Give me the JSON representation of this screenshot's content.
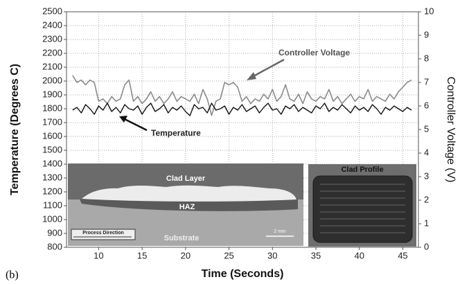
{
  "chart_data": {
    "type": "line",
    "x_label": "Time (Seconds)",
    "y_label": "Temperature (Degrees C)",
    "y2_label": "Controller Voltage (V)",
    "panel_label": "(b)",
    "annotations": [
      "Controller Voltage",
      "Temperature"
    ],
    "inset_labels": [
      "Clad Layer",
      "HAZ",
      "Substrate",
      "Process Direction",
      "2 mm",
      "Clad Profile"
    ],
    "grid": true,
    "xlim": [
      6.3,
      46.8
    ],
    "xticks": [
      10,
      15,
      20,
      25,
      30,
      35,
      40,
      45
    ],
    "ylim": [
      800,
      2500
    ],
    "yticks": [
      800,
      900,
      1000,
      1100,
      1200,
      1300,
      1400,
      1500,
      1600,
      1700,
      1800,
      1900,
      2000,
      2100,
      2200,
      2300,
      2400,
      2500
    ],
    "y2lim": [
      0,
      10
    ],
    "y2ticks": [
      0,
      1,
      2,
      3,
      4,
      5,
      6,
      7,
      8,
      9,
      10
    ],
    "x": [
      7,
      7.5,
      8,
      8.5,
      9,
      9.5,
      10,
      10.5,
      11,
      11.5,
      12,
      12.5,
      13,
      13.5,
      14,
      14.5,
      15,
      15.5,
      16,
      16.5,
      17,
      17.5,
      18,
      18.5,
      19,
      19.5,
      20,
      20.5,
      21,
      21.5,
      22,
      22.5,
      23,
      23.5,
      24,
      24.5,
      25,
      25.5,
      26,
      26.5,
      27,
      27.5,
      28,
      28.5,
      29,
      29.5,
      30,
      30.5,
      31,
      31.5,
      32,
      32.5,
      33,
      33.5,
      34,
      34.5,
      35,
      35.5,
      36,
      36.5,
      37,
      37.5,
      38,
      38.5,
      39,
      39.5,
      40,
      40.5,
      41,
      41.5,
      42,
      42.5,
      43,
      43.5,
      44,
      44.5,
      45,
      45.5,
      46
    ],
    "series": [
      {
        "name": "Controller Voltage",
        "color": "#8a8a8a",
        "axis": "y2",
        "values": [
          7.3,
          7.0,
          7.1,
          6.9,
          7.1,
          7.0,
          6.2,
          6.3,
          6.1,
          6.4,
          6.2,
          6.3,
          6.9,
          7.1,
          6.2,
          6.4,
          6.1,
          6.3,
          6.6,
          6.2,
          6.4,
          6.1,
          6.3,
          6.6,
          6.2,
          6.4,
          6.3,
          6.2,
          6.5,
          6.1,
          6.7,
          6.3,
          5.6,
          6.2,
          6.3,
          7.0,
          6.9,
          7.0,
          6.8,
          6.2,
          6.4,
          6.1,
          6.3,
          6.2,
          6.5,
          6.3,
          6.7,
          6.2,
          6.4,
          6.9,
          6.3,
          6.2,
          6.5,
          6.1,
          6.6,
          6.3,
          6.2,
          6.4,
          6.3,
          6.7,
          6.2,
          6.4,
          6.1,
          6.3,
          6.5,
          6.2,
          6.4,
          6.3,
          6.7,
          6.2,
          6.4,
          6.3,
          6.2,
          6.5,
          6.3,
          6.6,
          6.8,
          7.0,
          7.1
        ]
      },
      {
        "name": "Temperature",
        "color": "#111111",
        "values": [
          1790,
          1810,
          1770,
          1830,
          1800,
          1760,
          1820,
          1790,
          1840,
          1780,
          1810,
          1770,
          1830,
          1800,
          1790,
          1820,
          1760,
          1810,
          1840,
          1780,
          1800,
          1830,
          1770,
          1810,
          1790,
          1820,
          1780,
          1750,
          1830,
          1800,
          1810,
          1770,
          1840,
          1790,
          1800,
          1820,
          1760,
          1810,
          1790,
          1830,
          1780,
          1800,
          1820,
          1770,
          1810,
          1840,
          1790,
          1800,
          1760,
          1820,
          1800,
          1830,
          1780,
          1810,
          1790,
          1770,
          1820,
          1800,
          1840,
          1780,
          1810,
          1790,
          1830,
          1800,
          1770,
          1820,
          1790,
          1810,
          1780,
          1830,
          1800,
          1760,
          1810,
          1790,
          1820,
          1800,
          1780,
          1810,
          1790
        ]
      }
    ]
  }
}
